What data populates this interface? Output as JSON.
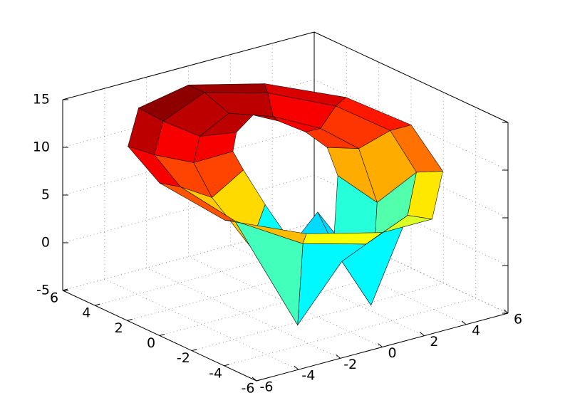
{
  "chart_data": {
    "type": "surface",
    "r": [
      2,
      3.5,
      5,
      6
    ],
    "theta": [
      0,
      30,
      60,
      90,
      120,
      150,
      180,
      210,
      240,
      270,
      300,
      330
    ],
    "z": [
      [
        10,
        11,
        12,
        13,
        12,
        11,
        10,
        7,
        3,
        6,
        3,
        8
      ],
      [
        9,
        10,
        11,
        12,
        11,
        10,
        8,
        4,
        -4,
        2,
        -4,
        5
      ],
      [
        10,
        11,
        12,
        13,
        12,
        11,
        10,
        8,
        6,
        5,
        6,
        8
      ],
      [
        10,
        11,
        12,
        13,
        13,
        12,
        11,
        9,
        8,
        7,
        6,
        8
      ]
    ],
    "colormap": "jet",
    "xlim": [
      -6,
      6
    ],
    "xticks": [
      -6,
      -4,
      -2,
      0,
      2,
      4,
      6
    ],
    "ylim": [
      -6,
      6
    ],
    "yticks": [
      -6,
      -4,
      -2,
      0,
      2,
      4,
      6
    ],
    "zlim": [
      -5,
      15
    ],
    "zticks": [
      -5,
      0,
      5,
      10,
      15
    ],
    "grid": true
  }
}
